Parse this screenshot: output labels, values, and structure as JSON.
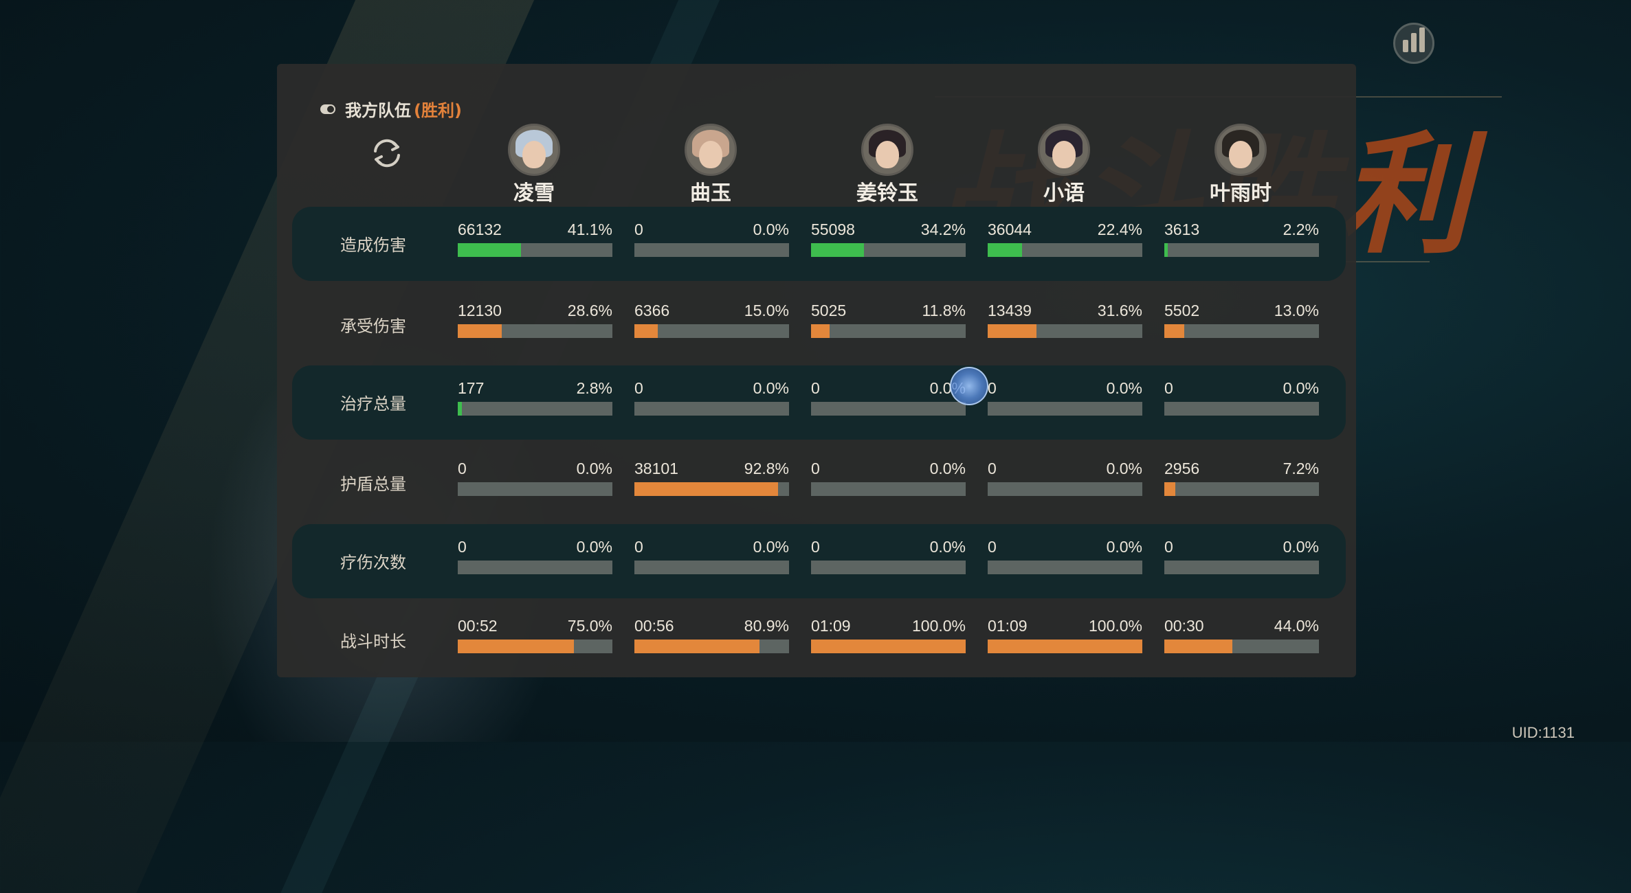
{
  "background_title": "战斗胜利",
  "uid": "UID:1131",
  "team": {
    "label": "我方队伍",
    "result": "(胜利)"
  },
  "heroes": [
    {
      "name": "凌雪",
      "hair_color": "#b9c8d8"
    },
    {
      "name": "曲玉",
      "hair_color": "#c9a68e"
    },
    {
      "name": "姜铃玉",
      "hair_color": "#2a2226"
    },
    {
      "name": "小语",
      "hair_color": "#2a2430"
    },
    {
      "name": "叶雨时",
      "hair_color": "#2a2622"
    }
  ],
  "colors": {
    "green": "#3ebd4e",
    "orange": "#e3873b",
    "track": "#5d6562",
    "accent": "#e3823b"
  },
  "rows": [
    {
      "label": "造成伤害",
      "color": "green",
      "cells": [
        {
          "value": "66132",
          "pct": "41.1%",
          "fill": 0.411
        },
        {
          "value": "0",
          "pct": "0.0%",
          "fill": 0
        },
        {
          "value": "55098",
          "pct": "34.2%",
          "fill": 0.342
        },
        {
          "value": "36044",
          "pct": "22.4%",
          "fill": 0.224
        },
        {
          "value": "3613",
          "pct": "2.2%",
          "fill": 0.022
        }
      ]
    },
    {
      "label": "承受伤害",
      "color": "orange",
      "cells": [
        {
          "value": "12130",
          "pct": "28.6%",
          "fill": 0.286
        },
        {
          "value": "6366",
          "pct": "15.0%",
          "fill": 0.15
        },
        {
          "value": "5025",
          "pct": "11.8%",
          "fill": 0.118
        },
        {
          "value": "13439",
          "pct": "31.6%",
          "fill": 0.316
        },
        {
          "value": "5502",
          "pct": "13.0%",
          "fill": 0.13
        }
      ]
    },
    {
      "label": "治疗总量",
      "color": "green",
      "cells": [
        {
          "value": "177",
          "pct": "2.8%",
          "fill": 0.028
        },
        {
          "value": "0",
          "pct": "0.0%",
          "fill": 0
        },
        {
          "value": "0",
          "pct": "0.0%",
          "fill": 0
        },
        {
          "value": "0",
          "pct": "0.0%",
          "fill": 0
        },
        {
          "value": "0",
          "pct": "0.0%",
          "fill": 0
        }
      ]
    },
    {
      "label": "护盾总量",
      "color": "orange",
      "cells": [
        {
          "value": "0",
          "pct": "0.0%",
          "fill": 0
        },
        {
          "value": "38101",
          "pct": "92.8%",
          "fill": 0.928
        },
        {
          "value": "0",
          "pct": "0.0%",
          "fill": 0
        },
        {
          "value": "0",
          "pct": "0.0%",
          "fill": 0
        },
        {
          "value": "2956",
          "pct": "7.2%",
          "fill": 0.072
        }
      ]
    },
    {
      "label": "疗伤次数",
      "color": "green",
      "cells": [
        {
          "value": "0",
          "pct": "0.0%",
          "fill": 0
        },
        {
          "value": "0",
          "pct": "0.0%",
          "fill": 0
        },
        {
          "value": "0",
          "pct": "0.0%",
          "fill": 0
        },
        {
          "value": "0",
          "pct": "0.0%",
          "fill": 0
        },
        {
          "value": "0",
          "pct": "0.0%",
          "fill": 0
        }
      ]
    },
    {
      "label": "战斗时长",
      "color": "orange",
      "cells": [
        {
          "value": "00:52",
          "pct": "75.0%",
          "fill": 0.75
        },
        {
          "value": "00:56",
          "pct": "80.9%",
          "fill": 0.809
        },
        {
          "value": "01:09",
          "pct": "100.0%",
          "fill": 1.0
        },
        {
          "value": "01:09",
          "pct": "100.0%",
          "fill": 1.0
        },
        {
          "value": "00:30",
          "pct": "44.0%",
          "fill": 0.44
        }
      ]
    }
  ]
}
